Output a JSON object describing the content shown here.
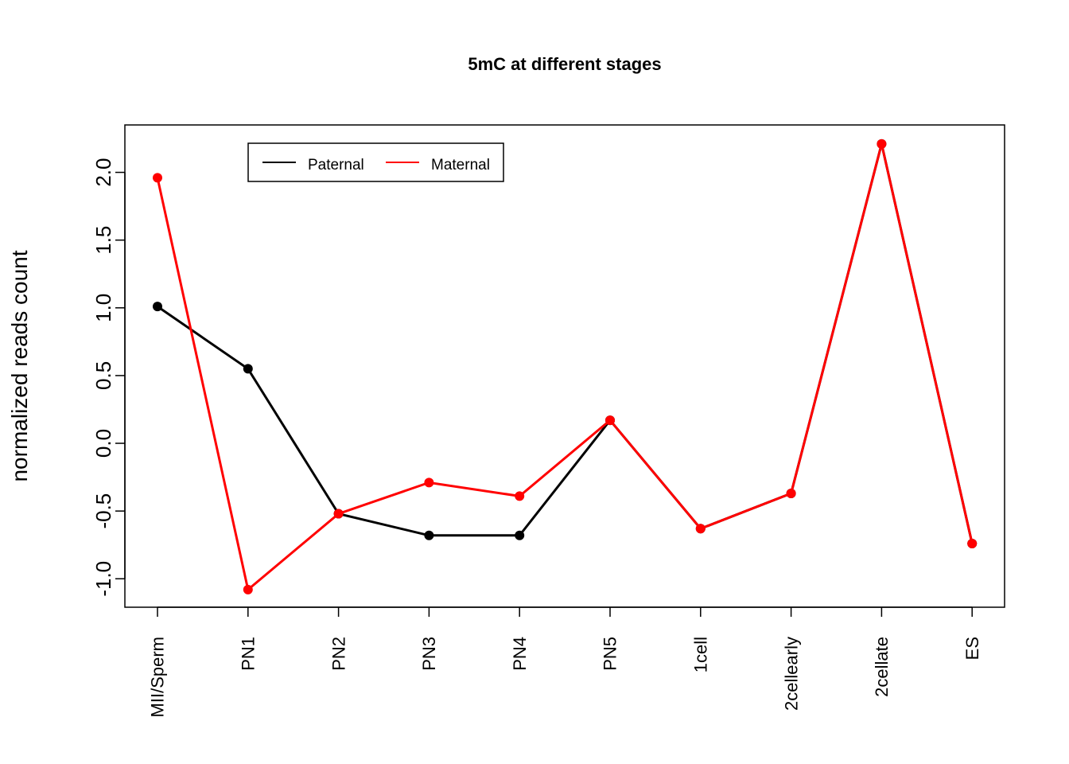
{
  "chart_data": {
    "type": "line",
    "title": "5mC at different stages",
    "xlabel": "",
    "ylabel": "normalized reads count",
    "categories": [
      "MII/Sperm",
      "PN1",
      "PN2",
      "PN3",
      "PN4",
      "PN5",
      "1cell",
      "2cellearly",
      "2cellate",
      "ES"
    ],
    "yticks": [
      -1.0,
      -0.5,
      0.0,
      0.5,
      1.0,
      1.5,
      2.0
    ],
    "ytick_labels": [
      "-1.0",
      "-0.5",
      "0.0",
      "0.5",
      "1.0",
      "1.5",
      "2.0"
    ],
    "ylim": [
      -1.21,
      2.35
    ],
    "grid": false,
    "legend_position": "top-left",
    "series": [
      {
        "name": "Paternal",
        "color": "#000000",
        "values": [
          1.01,
          0.55,
          -0.52,
          -0.68,
          -0.68,
          0.17,
          -0.63,
          -0.37,
          2.21,
          -0.74
        ]
      },
      {
        "name": "Maternal",
        "color": "#ff0000",
        "values": [
          1.96,
          -1.08,
          -0.52,
          -0.29,
          -0.39,
          0.17,
          -0.63,
          -0.37,
          2.21,
          -0.74
        ]
      }
    ]
  }
}
